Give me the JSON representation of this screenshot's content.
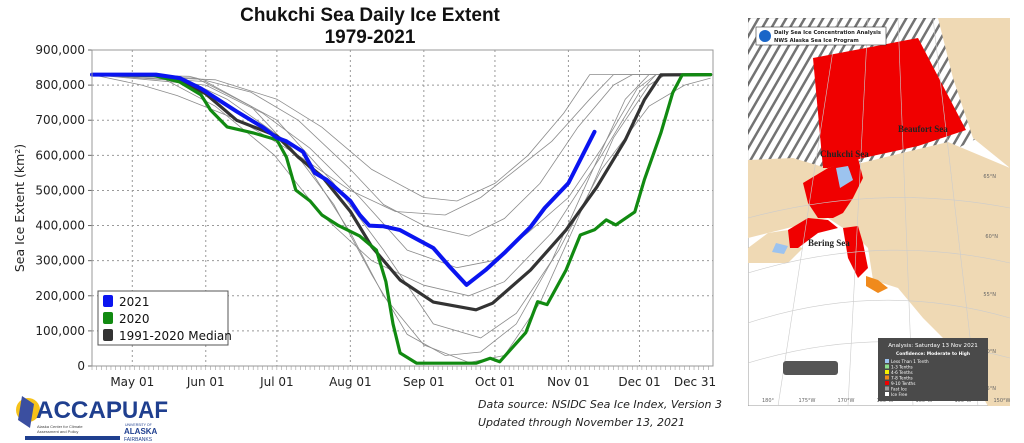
{
  "chart_data": {
    "type": "line",
    "title": "Chukchi Sea Daily Ice Extent",
    "subtitle": "1979-2021",
    "ylabel": "Sea Ice Extent (km²)",
    "xlabel": "",
    "ylim": [
      0,
      900000
    ],
    "xlim": [
      "04-14",
      "12-31"
    ],
    "yticks": [
      0,
      100000,
      200000,
      300000,
      400000,
      500000,
      600000,
      700000,
      800000,
      900000
    ],
    "ytick_labels": [
      "0",
      "100,000",
      "200,000",
      "300,000",
      "400,000",
      "500,000",
      "600,000",
      "700,000",
      "800,000",
      "900,000"
    ],
    "xticks": [
      "05-01",
      "06-01",
      "07-01",
      "08-01",
      "09-01",
      "10-01",
      "11-01",
      "12-01",
      "12-31"
    ],
    "xtick_labels": [
      "May 01",
      "Jun 01",
      "Jul 01",
      "Aug 01",
      "Sep 01",
      "Oct 01",
      "Nov 01",
      "Dec 01",
      "Dec 31"
    ],
    "grid": true,
    "legend_placement": "bottom-left",
    "series": [
      {
        "name": "2021",
        "color": "#0a14f0",
        "points": [
          [
            "04-14",
            830000
          ],
          [
            "05-11",
            830000
          ],
          [
            "05-21",
            820000
          ],
          [
            "05-30",
            790000
          ],
          [
            "06-14",
            725000
          ],
          [
            "06-25",
            680000
          ],
          [
            "07-01",
            650000
          ],
          [
            "07-05",
            640000
          ],
          [
            "07-12",
            610000
          ],
          [
            "07-17",
            550000
          ],
          [
            "07-22",
            530000
          ],
          [
            "08-01",
            470000
          ],
          [
            "08-05",
            430000
          ],
          [
            "08-09",
            400000
          ],
          [
            "08-15",
            398000
          ],
          [
            "08-22",
            387000
          ],
          [
            "09-05",
            336000
          ],
          [
            "09-12",
            282000
          ],
          [
            "09-19",
            231000
          ],
          [
            "09-27",
            273000
          ],
          [
            "10-05",
            322000
          ],
          [
            "10-16",
            396000
          ],
          [
            "10-22",
            450000
          ],
          [
            "11-01",
            521000
          ],
          [
            "11-12",
            667000
          ]
        ]
      },
      {
        "name": "2020",
        "color": "#118a11",
        "points": [
          [
            "04-14",
            830000
          ],
          [
            "05-10",
            828000
          ],
          [
            "05-21",
            809000
          ],
          [
            "05-30",
            772000
          ],
          [
            "06-03",
            729000
          ],
          [
            "06-10",
            681000
          ],
          [
            "06-21",
            664000
          ],
          [
            "07-01",
            644000
          ],
          [
            "07-05",
            595000
          ],
          [
            "07-09",
            501000
          ],
          [
            "07-15",
            470000
          ],
          [
            "07-20",
            430000
          ],
          [
            "07-27",
            400000
          ],
          [
            "08-05",
            370000
          ],
          [
            "08-12",
            330000
          ],
          [
            "08-16",
            240000
          ],
          [
            "08-19",
            120000
          ],
          [
            "08-22",
            37000
          ],
          [
            "08-29",
            8000
          ],
          [
            "09-23",
            8000
          ],
          [
            "09-29",
            22000
          ],
          [
            "10-03",
            12000
          ],
          [
            "10-14",
            95000
          ],
          [
            "10-19",
            183000
          ],
          [
            "10-23",
            175000
          ],
          [
            "10-31",
            273000
          ],
          [
            "11-06",
            373000
          ],
          [
            "11-12",
            388000
          ],
          [
            "11-17",
            416000
          ],
          [
            "11-21",
            402000
          ],
          [
            "11-29",
            439000
          ],
          [
            "12-03",
            530000
          ],
          [
            "12-10",
            664000
          ],
          [
            "12-15",
            778000
          ],
          [
            "12-19",
            829000
          ],
          [
            "12-31",
            830000
          ]
        ]
      },
      {
        "name": "1991-2020 Median",
        "color": "#333333",
        "points": [
          [
            "04-14",
            830000
          ],
          [
            "05-12",
            828000
          ],
          [
            "05-21",
            815000
          ],
          [
            "06-01",
            775000
          ],
          [
            "06-14",
            700000
          ],
          [
            "07-01",
            655000
          ],
          [
            "07-10",
            595000
          ],
          [
            "07-20",
            540000
          ],
          [
            "08-01",
            440000
          ],
          [
            "08-10",
            340000
          ],
          [
            "08-22",
            245000
          ],
          [
            "09-05",
            182000
          ],
          [
            "09-23",
            160000
          ],
          [
            "09-30",
            179000
          ],
          [
            "10-16",
            273000
          ],
          [
            "10-31",
            387000
          ],
          [
            "11-13",
            510000
          ],
          [
            "11-25",
            644000
          ],
          [
            "12-03",
            758000
          ],
          [
            "12-10",
            829000
          ],
          [
            "12-31",
            830000
          ]
        ]
      }
    ],
    "other_years_color": "#8c8c8c",
    "other_years": [
      [
        [
          "04-14",
          830000
        ],
        [
          "05-05",
          800000
        ],
        [
          "05-20",
          770000
        ],
        [
          "06-15",
          700000
        ],
        [
          "07-10",
          600000
        ],
        [
          "08-01",
          500000
        ],
        [
          "08-20",
          440000
        ],
        [
          "09-10",
          430000
        ],
        [
          "09-25",
          480000
        ],
        [
          "10-10",
          560000
        ],
        [
          "10-25",
          640000
        ],
        [
          "11-10",
          760000
        ],
        [
          "11-20",
          830000
        ],
        [
          "12-31",
          830000
        ]
      ],
      [
        [
          "04-14",
          830000
        ],
        [
          "05-25",
          825000
        ],
        [
          "06-20",
          780000
        ],
        [
          "07-10",
          700000
        ],
        [
          "08-01",
          560000
        ],
        [
          "08-15",
          460000
        ],
        [
          "09-01",
          400000
        ],
        [
          "09-20",
          370000
        ],
        [
          "10-05",
          420000
        ],
        [
          "10-20",
          520000
        ],
        [
          "11-05",
          680000
        ],
        [
          "11-20",
          800000
        ],
        [
          "11-28",
          830000
        ],
        [
          "12-31",
          830000
        ]
      ],
      [
        [
          "04-14",
          830000
        ],
        [
          "05-20",
          826000
        ],
        [
          "06-10",
          760000
        ],
        [
          "07-05",
          640000
        ],
        [
          "07-25",
          460000
        ],
        [
          "08-10",
          260000
        ],
        [
          "08-25",
          90000
        ],
        [
          "09-10",
          30000
        ],
        [
          "09-25",
          40000
        ],
        [
          "10-10",
          120000
        ],
        [
          "10-25",
          300000
        ],
        [
          "11-10",
          540000
        ],
        [
          "11-25",
          760000
        ],
        [
          "12-05",
          830000
        ],
        [
          "12-31",
          830000
        ]
      ],
      [
        [
          "04-14",
          830000
        ],
        [
          "06-01",
          800000
        ],
        [
          "06-25",
          720000
        ],
        [
          "07-15",
          620000
        ],
        [
          "08-05",
          480000
        ],
        [
          "08-25",
          330000
        ],
        [
          "09-15",
          280000
        ],
        [
          "09-30",
          300000
        ],
        [
          "10-15",
          380000
        ],
        [
          "11-01",
          480000
        ],
        [
          "11-15",
          620000
        ],
        [
          "11-30",
          790000
        ],
        [
          "12-08",
          830000
        ],
        [
          "12-31",
          830000
        ]
      ],
      [
        [
          "04-14",
          830000
        ],
        [
          "05-28",
          820000
        ],
        [
          "06-20",
          740000
        ],
        [
          "07-15",
          560000
        ],
        [
          "08-01",
          380000
        ],
        [
          "08-15",
          200000
        ],
        [
          "09-01",
          60000
        ],
        [
          "09-20",
          10000
        ],
        [
          "10-05",
          30000
        ],
        [
          "10-20",
          180000
        ],
        [
          "11-05",
          420000
        ],
        [
          "11-20",
          650000
        ],
        [
          "12-05",
          800000
        ],
        [
          "12-12",
          830000
        ],
        [
          "12-31",
          830000
        ]
      ],
      [
        [
          "04-14",
          830000
        ],
        [
          "06-05",
          815000
        ],
        [
          "07-01",
          760000
        ],
        [
          "07-20",
          680000
        ],
        [
          "08-10",
          560000
        ],
        [
          "09-01",
          480000
        ],
        [
          "09-15",
          470000
        ],
        [
          "10-01",
          520000
        ],
        [
          "10-15",
          600000
        ],
        [
          "10-30",
          720000
        ],
        [
          "11-10",
          830000
        ],
        [
          "12-31",
          830000
        ]
      ],
      [
        [
          "04-14",
          830000
        ],
        [
          "05-15",
          815000
        ],
        [
          "06-05",
          740000
        ],
        [
          "06-30",
          600000
        ],
        [
          "07-20",
          430000
        ],
        [
          "08-10",
          300000
        ],
        [
          "09-01",
          230000
        ],
        [
          "09-20",
          200000
        ],
        [
          "10-05",
          240000
        ],
        [
          "10-25",
          380000
        ],
        [
          "11-15",
          600000
        ],
        [
          "12-01",
          780000
        ],
        [
          "12-08",
          830000
        ],
        [
          "12-31",
          830000
        ]
      ],
      [
        [
          "04-14",
          830000
        ],
        [
          "06-01",
          810000
        ],
        [
          "07-01",
          700000
        ],
        [
          "07-25",
          520000
        ],
        [
          "08-15",
          330000
        ],
        [
          "09-05",
          120000
        ],
        [
          "09-25",
          80000
        ],
        [
          "10-10",
          150000
        ],
        [
          "10-28",
          330000
        ],
        [
          "11-15",
          560000
        ],
        [
          "12-05",
          740000
        ],
        [
          "12-20",
          800000
        ],
        [
          "12-31",
          820000
        ]
      ]
    ]
  },
  "footer": {
    "source": "Data source: NSIDC Sea Ice Index, Version 3",
    "updated": "Updated through November 13, 2021"
  },
  "logo": {
    "accap": "ACCAP",
    "accap_sub": "Alaska Center for Climate Assessment and Policy",
    "uaf": "UAF",
    "uaf_sub": "UNIVERSITY OF ALASKA FAIRBANKS"
  },
  "map": {
    "header_line1": "Daily Sea Ice Concentration Analysis",
    "header_line2": "NWS Alaska Sea Ice Program",
    "labels": {
      "beaufort": "Beaufort Sea",
      "chukchi": "Chukchi Sea",
      "bering": "Bering Sea"
    },
    "analysis_title": "Analysis: Saturday 13 Nov 2021",
    "confidence": "Confidence: Moderate to High",
    "legend": [
      {
        "label": "Less Than 1 Tenth",
        "color": "#9cc3ef"
      },
      {
        "label": "1-3 Tenths",
        "color": "#8ce08c"
      },
      {
        "label": "4-6 Tenths",
        "color": "#f5f000"
      },
      {
        "label": "7-8 Tenths",
        "color": "#f08a1c"
      },
      {
        "label": "9-10 Tenths",
        "color": "#f00000"
      },
      {
        "label": "Fast Ice",
        "color": "#9a9a9a"
      },
      {
        "label": "Ice Free",
        "color": "#ffffff"
      }
    ],
    "lon_labels": [
      "180°",
      "175°W",
      "170°W",
      "165°W",
      "160°W",
      "155°W",
      "150°W"
    ],
    "lat_labels": [
      "65°N",
      "60°N",
      "55°N",
      "50°N",
      "45°N"
    ],
    "colors": {
      "ice": "#f00000",
      "land": "#efd9b4",
      "ocean": "#ffffff",
      "legend_bg": "#4a4a4a"
    }
  }
}
